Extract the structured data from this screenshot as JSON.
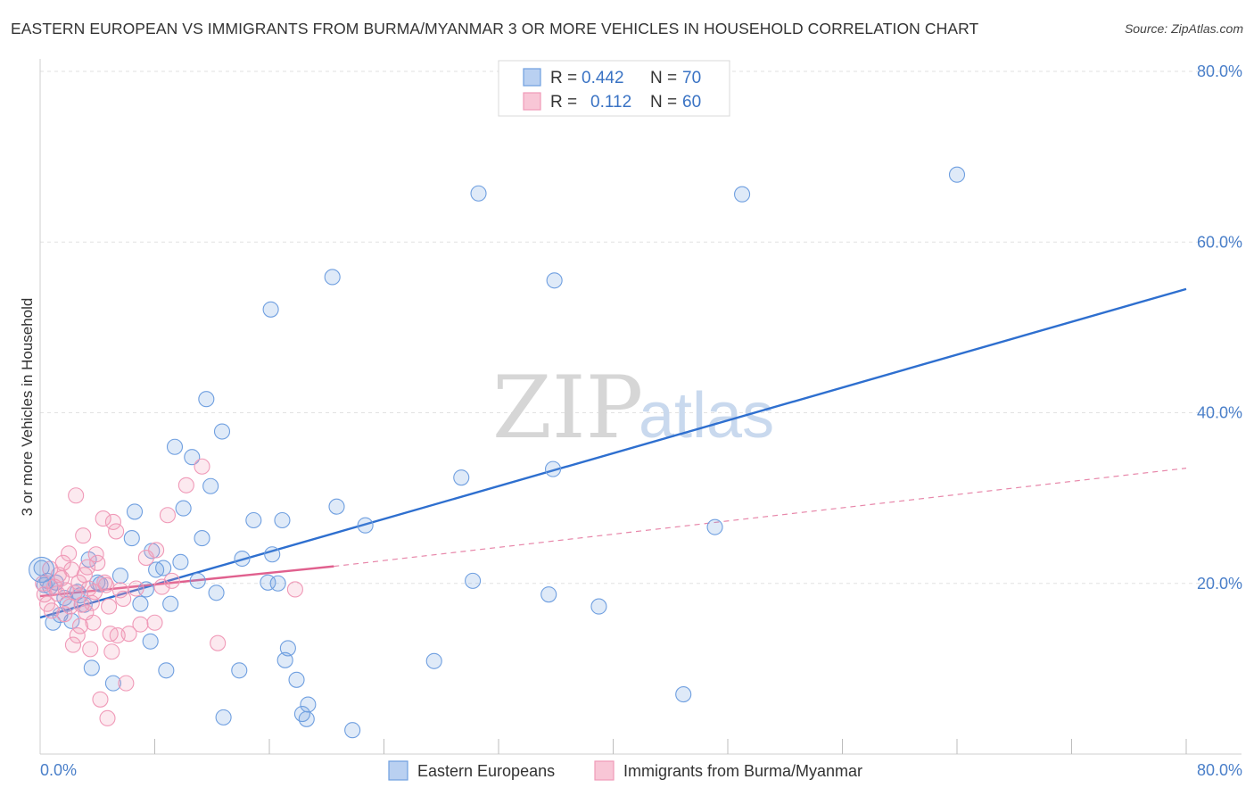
{
  "header": {
    "title": "EASTERN EUROPEAN VS IMMIGRANTS FROM BURMA/MYANMAR 3 OR MORE VEHICLES IN HOUSEHOLD CORRELATION CHART",
    "source": "Source: ZipAtlas.com"
  },
  "watermark": {
    "zip": "ZIP",
    "atlas": "atlas"
  },
  "legend": {
    "rows": [
      {
        "r_label": "R = ",
        "r_value": "0.442",
        "n_label": "N = ",
        "n_value": "70"
      },
      {
        "r_label": "R = ",
        "r_value": "0.112",
        "n_label": "N = ",
        "n_value": "60"
      }
    ]
  },
  "chart_data": {
    "type": "scatter",
    "title": "EASTERN EUROPEAN VS IMMIGRANTS FROM BURMA/MYANMAR 3 OR MORE VEHICLES IN HOUSEHOLD CORRELATION CHART",
    "xlabel": "",
    "ylabel": "3 or more Vehicles in Household",
    "xlim": [
      0,
      80
    ],
    "ylim": [
      0,
      80
    ],
    "x_tick_labels": [
      "0.0%",
      "80.0%"
    ],
    "y_tick_labels": [
      "20.0%",
      "40.0%",
      "60.0%",
      "80.0%"
    ],
    "y_ticks": [
      20,
      40,
      60,
      80
    ],
    "grid": true,
    "legend_position": "top-center",
    "colors": {
      "eastern": "#6f9fe0",
      "eastern_line": "#2e6fcf",
      "burma": "#f09ab8",
      "burma_line": "#e0608e"
    },
    "series": [
      {
        "name": "Eastern Europeans",
        "r": 0.442,
        "n": 70,
        "trend": {
          "x": [
            0,
            80
          ],
          "y": [
            16.0,
            54.5
          ],
          "style": "solid"
        },
        "points": [
          [
            0.1,
            21.8
          ],
          [
            0.3,
            19.8
          ],
          [
            0.5,
            20.3
          ],
          [
            0.7,
            19.6
          ],
          [
            0.9,
            15.4
          ],
          [
            1.1,
            20.1
          ],
          [
            1.4,
            16.3
          ],
          [
            1.7,
            18.3
          ],
          [
            1.9,
            17.6
          ],
          [
            2.2,
            15.6
          ],
          [
            2.6,
            19.0
          ],
          [
            2.8,
            18.6
          ],
          [
            3.1,
            17.5
          ],
          [
            3.4,
            22.8
          ],
          [
            3.6,
            10.1
          ],
          [
            4.0,
            20.1
          ],
          [
            4.2,
            19.9
          ],
          [
            5.1,
            8.3
          ],
          [
            5.6,
            20.9
          ],
          [
            6.4,
            25.3
          ],
          [
            6.6,
            28.4
          ],
          [
            7.0,
            17.6
          ],
          [
            7.4,
            19.3
          ],
          [
            7.7,
            13.2
          ],
          [
            7.8,
            23.8
          ],
          [
            8.1,
            21.6
          ],
          [
            8.6,
            21.8
          ],
          [
            8.8,
            9.8
          ],
          [
            9.1,
            17.6
          ],
          [
            9.4,
            36.0
          ],
          [
            9.8,
            22.5
          ],
          [
            10.0,
            28.8
          ],
          [
            10.6,
            34.8
          ],
          [
            11.0,
            20.3
          ],
          [
            11.3,
            25.3
          ],
          [
            11.6,
            41.6
          ],
          [
            11.9,
            31.4
          ],
          [
            12.3,
            18.9
          ],
          [
            12.7,
            37.8
          ],
          [
            12.8,
            4.3
          ],
          [
            13.9,
            9.8
          ],
          [
            14.1,
            22.9
          ],
          [
            14.9,
            27.4
          ],
          [
            15.9,
            20.1
          ],
          [
            16.1,
            52.1
          ],
          [
            16.2,
            23.4
          ],
          [
            16.6,
            20.0
          ],
          [
            16.9,
            27.4
          ],
          [
            17.1,
            11.0
          ],
          [
            17.3,
            12.4
          ],
          [
            17.9,
            8.7
          ],
          [
            18.3,
            4.7
          ],
          [
            18.6,
            4.1
          ],
          [
            18.7,
            5.8
          ],
          [
            20.4,
            55.9
          ],
          [
            20.7,
            29.0
          ],
          [
            21.8,
            2.8
          ],
          [
            22.7,
            26.8
          ],
          [
            27.5,
            10.9
          ],
          [
            29.4,
            32.4
          ],
          [
            30.2,
            20.3
          ],
          [
            30.6,
            65.7
          ],
          [
            35.5,
            18.7
          ],
          [
            35.8,
            33.4
          ],
          [
            35.9,
            55.5
          ],
          [
            39.0,
            17.3
          ],
          [
            44.9,
            7.0
          ],
          [
            47.1,
            26.6
          ],
          [
            49.0,
            65.6
          ],
          [
            64.0,
            67.9
          ]
        ]
      },
      {
        "name": "Immigrants from Burma/Myanmar",
        "r": 0.112,
        "n": 60,
        "trend": {
          "x": [
            0,
            20.5
          ],
          "y": [
            18.5,
            22.0
          ],
          "style": "solid",
          "extension": {
            "x": [
              20.5,
              80
            ],
            "y": [
              22.0,
              33.5
            ],
            "style": "dashed"
          }
        },
        "points": [
          [
            0.2,
            20.0
          ],
          [
            0.3,
            18.7
          ],
          [
            0.5,
            17.6
          ],
          [
            0.7,
            21.7
          ],
          [
            0.8,
            16.8
          ],
          [
            1.0,
            19.6
          ],
          [
            1.2,
            18.8
          ],
          [
            1.3,
            21.0
          ],
          [
            1.5,
            20.6
          ],
          [
            1.6,
            22.4
          ],
          [
            1.7,
            16.4
          ],
          [
            1.8,
            19.2
          ],
          [
            2.0,
            23.5
          ],
          [
            2.1,
            17.3
          ],
          [
            2.2,
            21.6
          ],
          [
            2.3,
            12.8
          ],
          [
            2.4,
            18.9
          ],
          [
            2.5,
            30.3
          ],
          [
            2.6,
            13.9
          ],
          [
            2.7,
            20.1
          ],
          [
            2.8,
            15.0
          ],
          [
            2.9,
            17.5
          ],
          [
            3.0,
            25.6
          ],
          [
            3.1,
            21.0
          ],
          [
            3.2,
            16.6
          ],
          [
            3.3,
            21.9
          ],
          [
            3.4,
            19.4
          ],
          [
            3.5,
            12.3
          ],
          [
            3.6,
            17.7
          ],
          [
            3.7,
            15.4
          ],
          [
            3.8,
            19.0
          ],
          [
            3.9,
            23.4
          ],
          [
            4.0,
            22.4
          ],
          [
            4.2,
            6.4
          ],
          [
            4.4,
            27.6
          ],
          [
            4.5,
            20.1
          ],
          [
            4.6,
            19.8
          ],
          [
            4.7,
            4.2
          ],
          [
            4.8,
            17.3
          ],
          [
            4.9,
            14.1
          ],
          [
            5.0,
            12.0
          ],
          [
            5.1,
            27.2
          ],
          [
            5.3,
            26.1
          ],
          [
            5.4,
            13.9
          ],
          [
            5.6,
            19.2
          ],
          [
            5.8,
            18.2
          ],
          [
            6.0,
            8.3
          ],
          [
            6.2,
            14.1
          ],
          [
            6.7,
            19.4
          ],
          [
            7.0,
            15.2
          ],
          [
            7.4,
            23.0
          ],
          [
            8.0,
            15.4
          ],
          [
            8.5,
            19.6
          ],
          [
            8.9,
            28.0
          ],
          [
            9.2,
            20.3
          ],
          [
            10.2,
            31.5
          ],
          [
            11.3,
            33.7
          ],
          [
            12.4,
            13.0
          ],
          [
            17.8,
            19.3
          ],
          [
            8.1,
            23.9
          ]
        ]
      }
    ]
  },
  "bottom_legend": {
    "items": [
      {
        "label": "Eastern Europeans"
      },
      {
        "label": "Immigrants from Burma/Myanmar"
      }
    ]
  }
}
